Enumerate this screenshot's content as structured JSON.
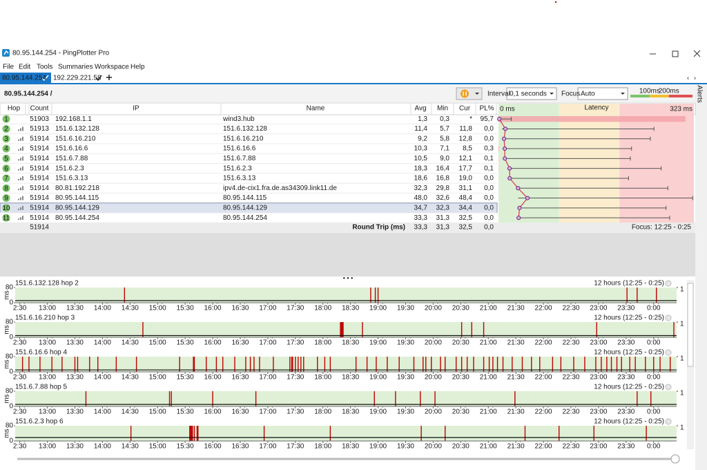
{
  "window": {
    "title": "80.95.144.254 - PingPlotter Pro"
  },
  "menu": [
    "File",
    "Edit",
    "Tools",
    "Summaries",
    "Workspace",
    "Help"
  ],
  "tabs": [
    {
      "label": "80.95.144.254"
    },
    {
      "label": "192.229.221.58"
    }
  ],
  "toolbar": {
    "target": "80.95.144.254 /",
    "interval_label": "Interval",
    "interval": "0,1 seconds",
    "focus_label": "Focus",
    "focus": "Auto",
    "alerts": "Alerts"
  },
  "table": {
    "headers": [
      "Hop",
      "Count",
      "IP",
      "Name",
      "Avg",
      "Min",
      "Cur",
      "PL%"
    ],
    "rows": [
      {
        "hop": "1",
        "count": "51903",
        "ip": "192.168.1.1",
        "name": "wind3.hub",
        "cur": "*"
      },
      {
        "hop": "2",
        "count": "51913",
        "ip": "151.6.132.128",
        "name": "151.6.132.128",
        "cur": "11,8"
      },
      {
        "hop": "3",
        "count": "51914",
        "ip": "151.6.16.210",
        "name": "151.6.16.210",
        "cur": "12,8"
      },
      {
        "hop": "4",
        "count": "51914",
        "ip": "151.6.16.6",
        "name": "151.6.16.6",
        "cur": "8,5"
      },
      {
        "hop": "5",
        "count": "51914",
        "ip": "151.6.7.88",
        "name": "151.6.7.88",
        "cur": "12,1"
      },
      {
        "hop": "6",
        "count": "51914",
        "ip": "151.6.2.3",
        "name": "151.6.2.3",
        "cur": "17,7"
      },
      {
        "hop": "7",
        "count": "51914",
        "ip": "151.6.3.13",
        "name": "151.6.3.13",
        "cur": "19,0"
      },
      {
        "hop": "8",
        "count": "51914",
        "ip": "80.81.192.218",
        "name": "ipv4.de-cix1.fra.de.as34309.link11.de",
        "cur": "31,1"
      },
      {
        "hop": "9",
        "count": "51914",
        "ip": "80.95.144.115",
        "name": "80.95.144.115",
        "cur": "48,4"
      },
      {
        "hop": "10",
        "count": "51914",
        "ip": "80.95.144.129",
        "name": "80.95.144.129",
        "cur": "34,4"
      },
      {
        "hop": "11",
        "count": "51914",
        "ip": "80.95.144.254",
        "name": "80.95.144.254",
        "cur": "32,5"
      }
    ],
    "footer": {
      "count": "51914",
      "label": "Round Trip (ms)",
      "avg": "33,3",
      "min": "31,3",
      "cur": "32,5",
      "pl": "0,0",
      "focus": "Focus: 12:25 - 0:25"
    }
  },
  "latency_graph": {
    "title": "Latency",
    "xlim": [
      0,
      323
    ],
    "xticks": [
      {
        "value": 0,
        "label": "0 ms"
      },
      {
        "value": 323,
        "label": "323 ms"
      }
    ],
    "thresholds": [
      {
        "value": 100,
        "label": "100ms"
      },
      {
        "value": 200,
        "label": "200ms"
      }
    ],
    "avg": [
      1.3,
      11.4,
      9.2,
      10.3,
      10.5,
      18.3,
      18.6,
      32.3,
      48.0,
      34.7,
      33.3
    ],
    "avg_labels": [
      "1,3",
      "11,4",
      "9,2",
      "10,3",
      "10,5",
      "18,3",
      "18,6",
      "32,3",
      "48,0",
      "34,7",
      "33,3"
    ],
    "min": [
      0.3,
      5.7,
      5.8,
      7.1,
      9.0,
      16.4,
      16.8,
      29.8,
      32.6,
      32.3,
      31.3
    ],
    "min_labels": [
      "0,3",
      "5,7",
      "5,8",
      "7,1",
      "9,0",
      "16,4",
      "16,8",
      "29,8",
      "32,6",
      "32,3",
      "31,3"
    ],
    "max": [
      21,
      257,
      251,
      220,
      218,
      269,
      215,
      280,
      321,
      277,
      283
    ],
    "pl": [
      95.7,
      0.0,
      0.0,
      0.3,
      0.1,
      0.1,
      0.0,
      0.0,
      0.0,
      0.0,
      0.0
    ],
    "pl_labels": [
      "95,7",
      "0,0",
      "0,0",
      "0,3",
      "0,1",
      "0,1",
      "0,0",
      "0,0",
      "0,0",
      "0,0",
      "0,0"
    ]
  },
  "timeline_axis": {
    "xlim": [
      0,
      720
    ],
    "xticks": [
      {
        "value": 5,
        "label": "2:30"
      },
      {
        "value": 35,
        "label": "13:00"
      },
      {
        "value": 65,
        "label": "13:30"
      },
      {
        "value": 95,
        "label": "14:00"
      },
      {
        "value": 125,
        "label": "14:30"
      },
      {
        "value": 155,
        "label": "15:00"
      },
      {
        "value": 185,
        "label": "15:30"
      },
      {
        "value": 215,
        "label": "16:00"
      },
      {
        "value": 245,
        "label": "16:30"
      },
      {
        "value": 275,
        "label": "17:00"
      },
      {
        "value": 305,
        "label": "17:30"
      },
      {
        "value": 335,
        "label": "18:00"
      },
      {
        "value": 365,
        "label": "18:30"
      },
      {
        "value": 395,
        "label": "19:00"
      },
      {
        "value": 425,
        "label": "19:30"
      },
      {
        "value": 455,
        "label": "20:00"
      },
      {
        "value": 485,
        "label": "20:30"
      },
      {
        "value": 515,
        "label": "21:00"
      },
      {
        "value": 545,
        "label": "21:30"
      },
      {
        "value": 575,
        "label": "22:00"
      },
      {
        "value": 605,
        "label": "22:30"
      },
      {
        "value": 635,
        "label": "23:00"
      },
      {
        "value": 665,
        "label": "23:30"
      },
      {
        "value": 695,
        "label": "0:00"
      }
    ]
  },
  "chart_data": [
    {
      "type": "timeline",
      "title": "151.6.132.128 hop 2",
      "subtitle": "12 hours (12:25 - 0:25)",
      "ylabel": "ms",
      "ylim": [
        0,
        80
      ],
      "yticks": [
        0,
        80
      ],
      "y2lim": [
        0,
        1
      ],
      "y2ticks": [
        1
      ],
      "color": "#c00000",
      "loss": [
        119,
        387,
        392,
        395,
        666,
        677,
        698
      ]
    },
    {
      "type": "timeline",
      "title": "151.6.16.210 hop 3",
      "subtitle": "12 hours (12:25 - 0:25)",
      "ylabel": "ms",
      "ylim": [
        0,
        80
      ],
      "yticks": [
        0,
        80
      ],
      "y2lim": [
        0,
        1
      ],
      "y2ticks": [
        1
      ],
      "color": "#c00000",
      "loss": [
        139,
        354,
        355,
        356,
        357,
        378,
        486,
        497,
        510,
        633,
        717
      ]
    },
    {
      "type": "timeline",
      "title": "151.6.16.6 hop 4",
      "subtitle": "12 hours (12:25 - 0:25)",
      "ylabel": "ms",
      "ylim": [
        0,
        80
      ],
      "yticks": [
        0,
        80
      ],
      "y2lim": [
        0,
        1
      ],
      "y2ticks": [
        1
      ],
      "color": "#c00000",
      "loss": [
        8,
        15,
        27,
        40,
        51,
        65,
        68,
        81,
        90,
        110,
        132,
        179,
        194,
        195,
        208,
        219,
        226,
        239,
        251,
        256,
        260,
        266,
        281,
        299,
        301,
        302,
        305,
        308,
        311,
        314,
        329,
        337,
        343,
        371,
        383,
        393,
        405,
        418,
        434,
        444,
        447,
        453,
        463,
        468,
        480,
        486,
        492,
        499,
        510,
        516,
        520,
        525,
        531,
        541,
        552,
        562,
        571,
        585,
        594,
        608,
        620,
        632,
        638,
        644,
        649,
        655,
        660,
        669,
        675,
        686,
        695,
        702,
        713
      ]
    },
    {
      "type": "timeline",
      "title": "151.6.7.88 hop 5",
      "subtitle": "12 hours (12:25 - 0:25)",
      "ylabel": "ms",
      "ylim": [
        0,
        80
      ],
      "yticks": [
        0,
        80
      ],
      "y2lim": [
        0,
        1
      ],
      "y2ticks": [
        1
      ],
      "color": "#c00000",
      "loss": [
        77,
        168,
        170,
        215,
        262,
        391,
        414,
        441,
        457,
        544,
        677,
        692
      ]
    },
    {
      "type": "timeline",
      "title": "151.6.2.3 hop 6",
      "subtitle": "12 hours (12:25 - 0:25)",
      "ylabel": "ms",
      "ylim": [
        0,
        80
      ],
      "yticks": [
        0,
        80
      ],
      "y2lim": [
        0,
        1
      ],
      "y2ticks": [
        1
      ],
      "color": "#c00000",
      "loss": [
        126,
        190,
        191,
        192,
        193,
        195,
        198,
        199,
        271,
        343,
        442,
        468,
        555,
        592,
        630,
        687
      ]
    }
  ]
}
